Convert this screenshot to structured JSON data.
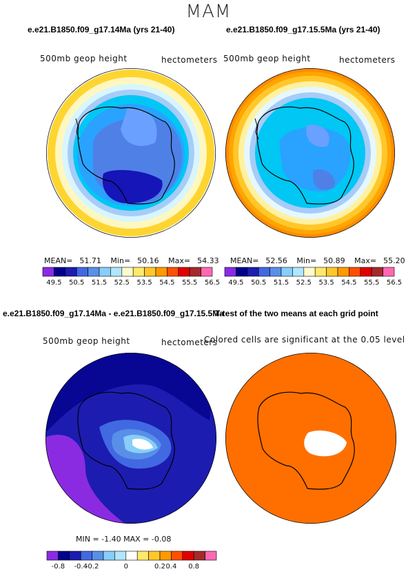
{
  "page": {
    "title": "MAM"
  },
  "panels": [
    {
      "title": "e.e21.B1850.f09_g17.14Ma (yrs 21-40)",
      "left_label": "500mb geop height",
      "right_label": "hectometers",
      "stats": {
        "mean_label": "MEAN=",
        "mean": "51.71",
        "min_label": "Min=",
        "min": "50.16",
        "max_label": "Max=",
        "max": "54.33"
      }
    },
    {
      "title": "e.e21.B1850.f09_g17.15.5Ma (yrs 21-40)",
      "left_label": "500mb geop height",
      "right_label": "hectometers",
      "stats": {
        "mean_label": "MEAN=",
        "mean": "52.56",
        "min_label": "Min=",
        "min": "50.89",
        "max_label": "Max=",
        "max": "55.20"
      }
    },
    {
      "title": "e.e21.B1850.f09_g17.14Ma - e.e21.B1850.f09_g17.15.5Ma",
      "left_label": "500mb geop height",
      "right_label": "hectometers",
      "stats": {
        "text": "MIN =   -1.40  MAX =   -0.08"
      }
    },
    {
      "title": "T-test of the two means at each grid point",
      "left_label": "Colored cells are significant at the 0.05 level",
      "right_label": ""
    }
  ],
  "chart_data": [
    {
      "type": "heatmap",
      "name": "panel-1",
      "projection": "south polar stereographic",
      "rings": [
        {
          "level": "56.5",
          "color": "#ffffff"
        },
        {
          "level": "54.5-55.5",
          "color": "#fed530"
        },
        {
          "level": "53.5-54.5",
          "color": "#fff7c0"
        },
        {
          "level": "52.5-53.5",
          "color": "#d8f6ff"
        },
        {
          "level": "51.5-52.5",
          "color": "#a7ccf7"
        },
        {
          "level": "50.5-51.5",
          "color": "#00c7f4"
        },
        {
          "level": "50.5-51.5b",
          "color": "#2aa2ff"
        },
        {
          "level": "50.0-50.5",
          "color": "#4f80e6"
        }
      ],
      "colorbar": {
        "colors": [
          "#8a2be2",
          "#00008b",
          "#1c1cb0",
          "#4169e1",
          "#5a8fe8",
          "#87cefa",
          "#b0e6ff",
          "#fffacd",
          "#ffe96b",
          "#ffc72a",
          "#ff9a00",
          "#ff5000",
          "#e00000",
          "#a52a2a",
          "#ff69b4"
        ],
        "labels": [
          "49.5",
          "50.5",
          "51.5",
          "52.5",
          "53.5",
          "54.5",
          "55.5",
          "56.5"
        ]
      }
    },
    {
      "type": "heatmap",
      "name": "panel-2",
      "projection": "south polar stereographic",
      "rings": [
        {
          "level": "56.5",
          "color": "#ffffff"
        },
        {
          "level": "55.5-56.5",
          "color": "#ff8c00"
        },
        {
          "level": "54.5-55.5",
          "color": "#ffc72a"
        },
        {
          "level": "53.5-54.5",
          "color": "#fff1a0"
        },
        {
          "level": "52.5-53.5",
          "color": "#e6f8ff"
        },
        {
          "level": "51.5-52.5",
          "color": "#a7ccf7"
        },
        {
          "level": "51.5",
          "color": "#00c7f4"
        },
        {
          "level": "51.0",
          "color": "#2aa2ff"
        }
      ],
      "colorbar": {
        "colors": [
          "#8a2be2",
          "#00008b",
          "#1c1cb0",
          "#4169e1",
          "#5a8fe8",
          "#87cefa",
          "#b0e6ff",
          "#fffacd",
          "#ffe96b",
          "#ffc72a",
          "#ff9a00",
          "#ff5000",
          "#e00000",
          "#a52a2a",
          "#ff69b4"
        ],
        "labels": [
          "49.5",
          "50.5",
          "51.5",
          "52.5",
          "53.5",
          "54.5",
          "55.5",
          "56.5"
        ]
      }
    },
    {
      "type": "heatmap",
      "name": "difference",
      "projection": "south polar stereographic",
      "min": -1.4,
      "max": -0.08,
      "colorbar": {
        "colors": [
          "#8a2be2",
          "#00008b",
          "#1c1cb0",
          "#4169e1",
          "#5a8fe8",
          "#87cefa",
          "#b0e6ff",
          "#ffffff",
          "#ffe96b",
          "#ffc72a",
          "#ff9a00",
          "#ff5000",
          "#e00000",
          "#a52a2a",
          "#ff69b4"
        ],
        "labels": [
          "-0.8",
          "-0.4",
          "-0.2",
          "0",
          "0.2",
          "0.4",
          "0.8"
        ]
      }
    },
    {
      "type": "heatmap",
      "name": "t-test",
      "projection": "south polar stereographic",
      "significant_color": "#ff6f00"
    }
  ]
}
